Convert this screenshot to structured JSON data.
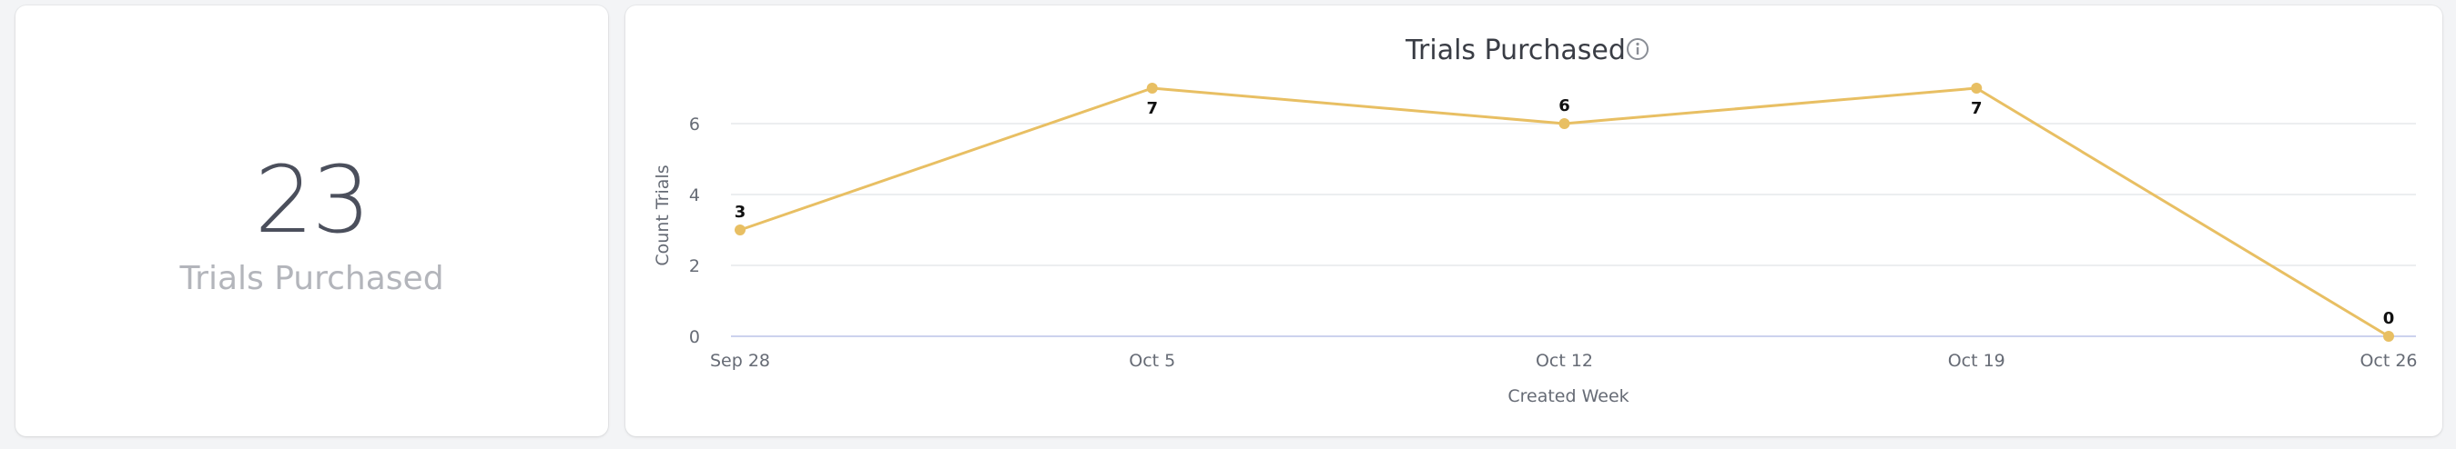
{
  "kpi": {
    "value": "23",
    "label": "Trials Purchased"
  },
  "colors": {
    "series": "#e8bf63",
    "grid": "#e6e8ec",
    "baseline": "#ccd2ee"
  },
  "icons": {
    "title_info": "info-icon"
  },
  "chart_data": {
    "type": "line",
    "title": "Trials Purchased",
    "xlabel": "Created Week",
    "ylabel": "Count Trials",
    "x": [
      "Sep 28",
      "Oct 5",
      "Oct 12",
      "Oct 19",
      "Oct 26"
    ],
    "series": [
      {
        "values": [
          3,
          7,
          6,
          7,
          0
        ]
      }
    ],
    "yticks": [
      0,
      2,
      4,
      6
    ],
    "ylim": [
      0,
      7
    ],
    "grid": true,
    "legend": "none",
    "data_labels": true
  }
}
